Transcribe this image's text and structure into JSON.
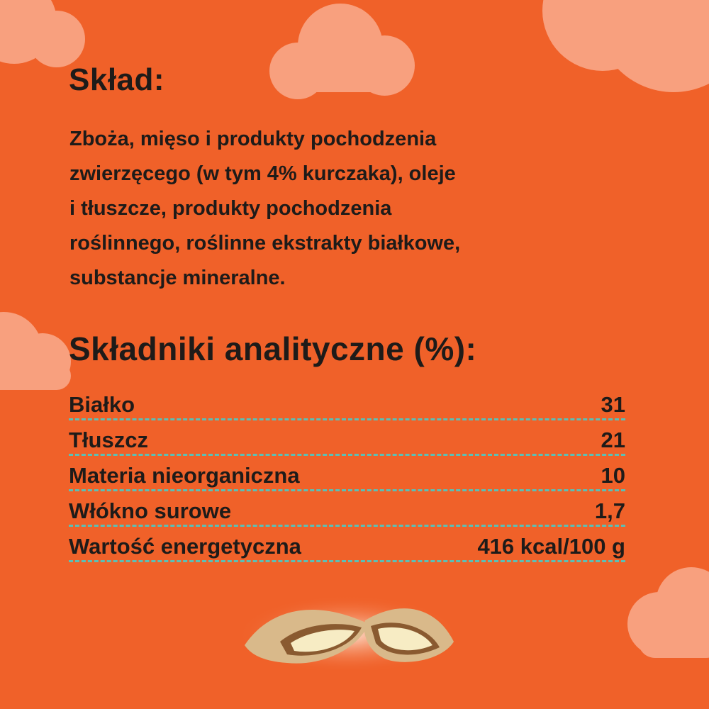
{
  "composition": {
    "title": "Skład:",
    "lines": [
      "Zboża, mięso i produkty pochodzenia",
      "zwierzęcego (w tym 4% kurczaka), oleje",
      "i tłuszcze, produkty pochodzenia",
      "roślinnego, roślinne ekstrakty białkowe,",
      "substancje mineralne."
    ]
  },
  "analysis": {
    "title": "Składniki analityczne (%):",
    "rows": [
      {
        "label": "Białko",
        "value": "31"
      },
      {
        "label": "Tłuszcz",
        "value": "21"
      },
      {
        "label": "Materia nieorganiczna",
        "value": "10"
      },
      {
        "label": "Włókno surowe",
        "value": "1,7"
      },
      {
        "label": "Wartość energetyczna",
        "value": "416 kcal/100 g"
      }
    ]
  },
  "colors": {
    "background": "#F06129",
    "cloud": "#F8A07E",
    "divider": "#5BBFB5",
    "text": "#1e1b19"
  }
}
